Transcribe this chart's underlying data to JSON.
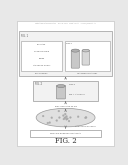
{
  "bg_color": "#e8e8e8",
  "header_text": "Patent Application Publication    Sep. 28, 2017   Sheet 1 of 44    US 2017/0283841 A1",
  "fig_label": "FIG. 2",
  "page_bg": "#ffffff",
  "text_color": "#555555",
  "line_color": "#777777",
  "box_edge": "#999999",
  "box_face": "#f2f2f2",
  "inner_box_face": "#ffffff",
  "tube_body": "#c8c8c8",
  "tube_top": "#b0b0b0",
  "cell_color": "#aaaaaa",
  "dish_face": "#e0e0e0"
}
